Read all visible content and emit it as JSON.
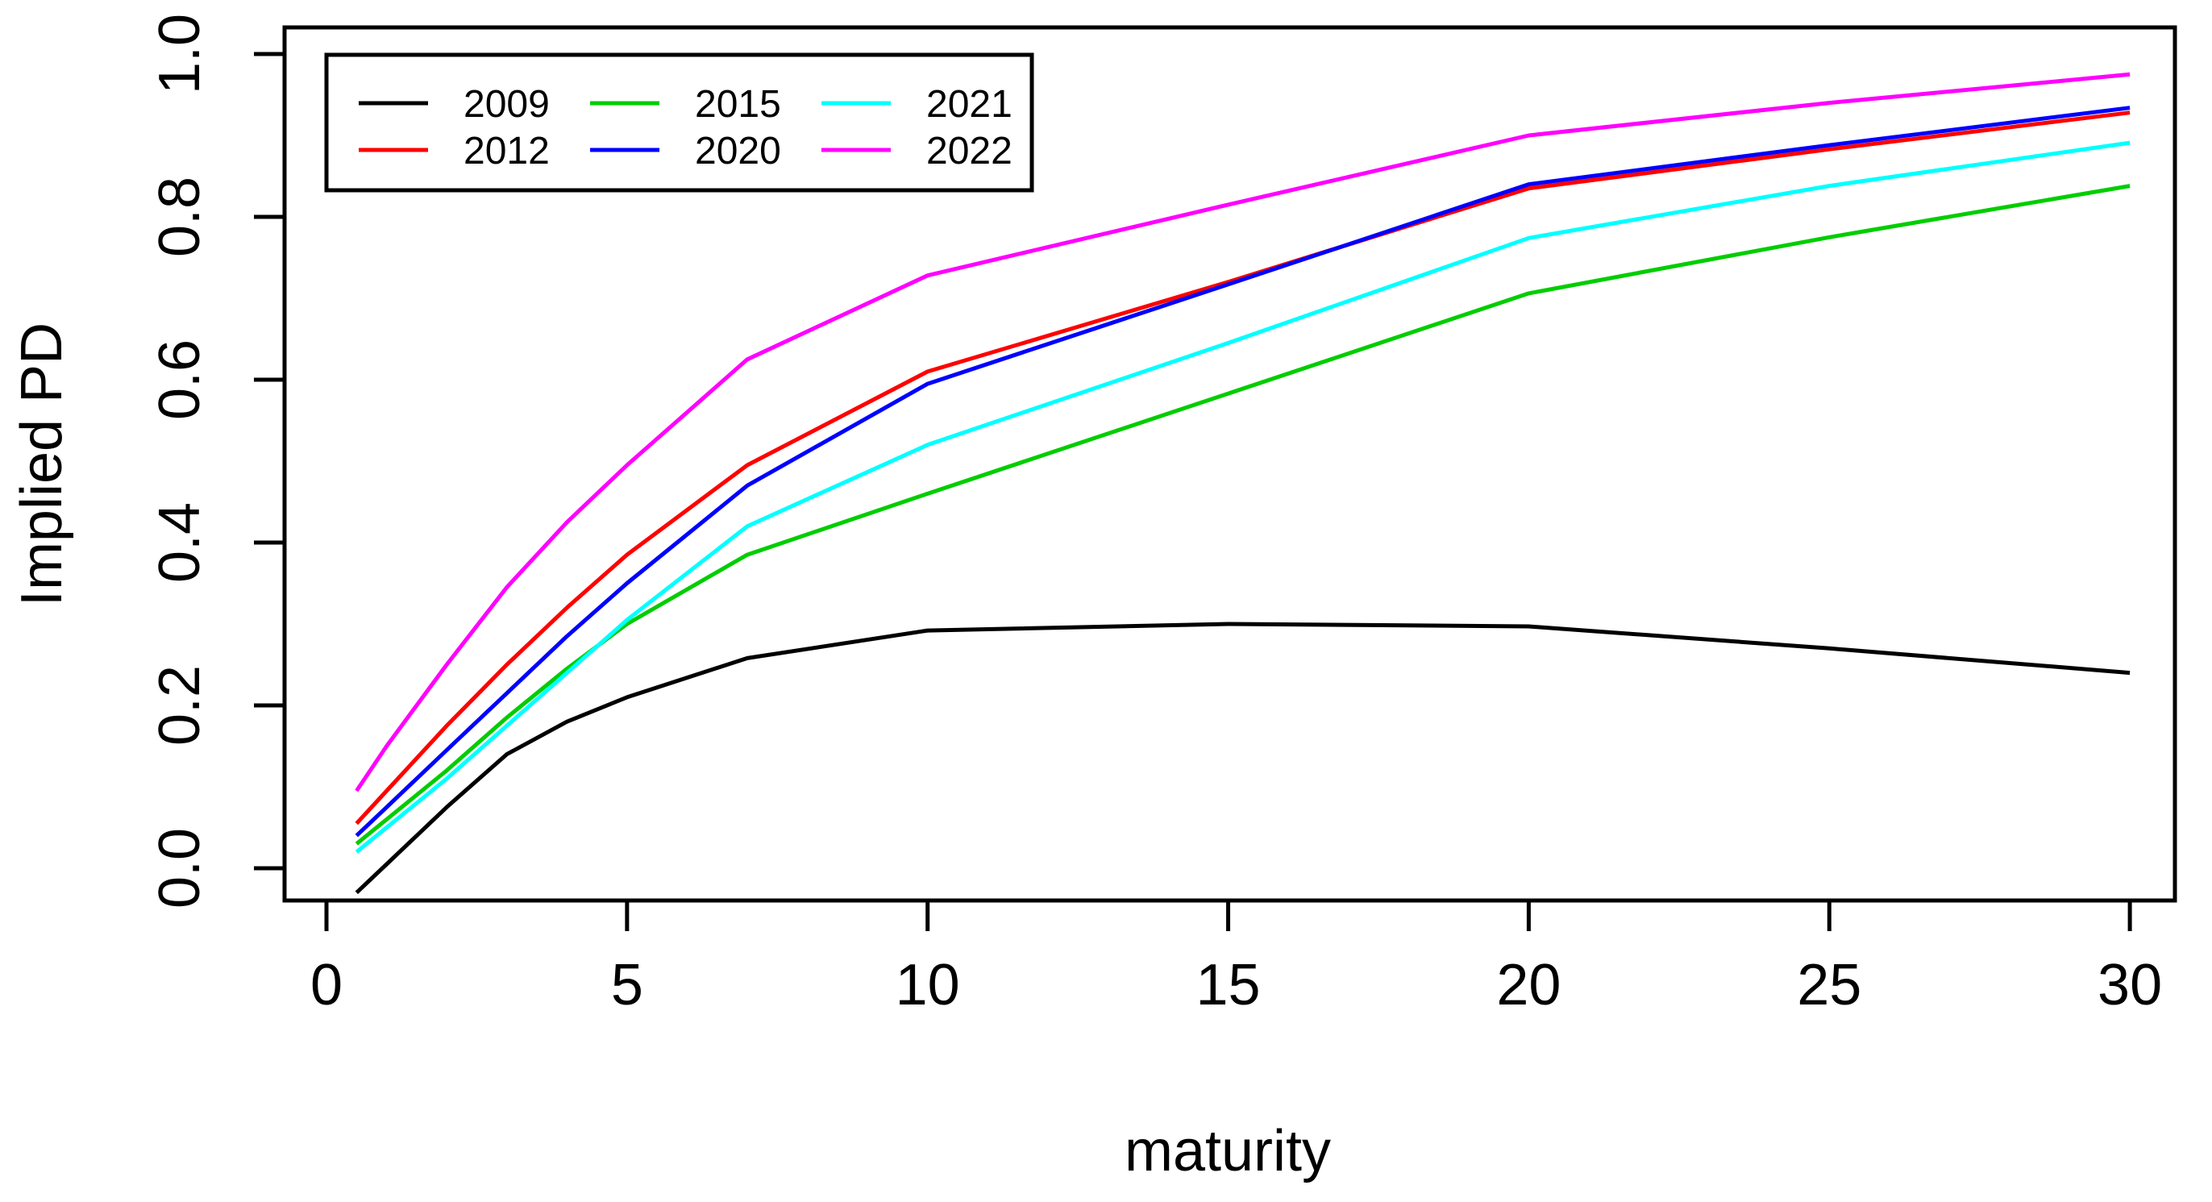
{
  "chart_data": {
    "type": "line",
    "title": "",
    "xlabel": "maturity",
    "ylabel": "Implied PD",
    "grid": false,
    "legend_position": "top-left",
    "xlim": [
      -0.7,
      30.8
    ],
    "ylim": [
      -0.04,
      1.03
    ],
    "x_ticks": [
      {
        "v": 0,
        "label": "0"
      },
      {
        "v": 5,
        "label": "5"
      },
      {
        "v": 10,
        "label": "10"
      },
      {
        "v": 15,
        "label": "15"
      },
      {
        "v": 20,
        "label": "20"
      },
      {
        "v": 25,
        "label": "25"
      },
      {
        "v": 30,
        "label": "30"
      }
    ],
    "y_ticks": [
      {
        "v": 0.0,
        "label": "0.0"
      },
      {
        "v": 0.2,
        "label": "0.2"
      },
      {
        "v": 0.4,
        "label": "0.4"
      },
      {
        "v": 0.6,
        "label": "0.6"
      },
      {
        "v": 0.8,
        "label": "0.8"
      },
      {
        "v": 1.0,
        "label": "1.0"
      }
    ],
    "x": [
      0.5,
      1,
      2,
      3,
      4,
      5,
      7,
      10,
      15,
      20,
      25,
      30
    ],
    "series": [
      {
        "name": "2009",
        "color": "#000000",
        "values": [
          -0.03,
          0.005,
          0.075,
          0.14,
          0.18,
          0.21,
          0.258,
          0.292,
          0.3,
          0.297,
          0.27,
          0.24
        ]
      },
      {
        "name": "2012",
        "color": "#FF0000",
        "values": [
          0.055,
          0.095,
          0.175,
          0.25,
          0.32,
          0.385,
          0.495,
          0.61,
          0.72,
          0.835,
          0.883,
          0.928
        ]
      },
      {
        "name": "2015",
        "color": "#00CD00",
        "values": [
          0.03,
          0.06,
          0.12,
          0.185,
          0.245,
          0.3,
          0.385,
          0.46,
          0.583,
          0.706,
          0.775,
          0.838
        ]
      },
      {
        "name": "2020",
        "color": "#0000FF",
        "values": [
          0.04,
          0.075,
          0.145,
          0.215,
          0.285,
          0.35,
          0.47,
          0.595,
          0.717,
          0.84,
          0.888,
          0.934
        ]
      },
      {
        "name": "2021",
        "color": "#00FFFF",
        "values": [
          0.02,
          0.05,
          0.11,
          0.175,
          0.24,
          0.305,
          0.42,
          0.52,
          0.645,
          0.774,
          0.838,
          0.891
        ]
      },
      {
        "name": "2022",
        "color": "#FF00FF",
        "values": [
          0.095,
          0.15,
          0.25,
          0.345,
          0.425,
          0.495,
          0.625,
          0.728,
          0.815,
          0.9,
          0.94,
          0.975
        ]
      }
    ],
    "legend": {
      "rows": 2,
      "columns": 3,
      "entries": [
        "2009",
        "2012",
        "2015",
        "2020",
        "2021",
        "2022"
      ]
    },
    "axis_color": "#000000",
    "background_color": "#FFFFFF"
  }
}
